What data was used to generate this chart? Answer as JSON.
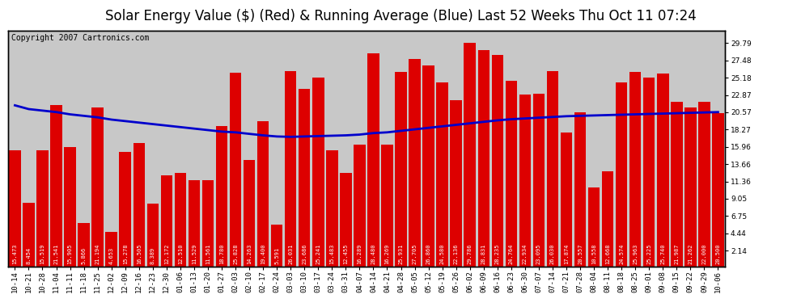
{
  "title": "Solar Energy Value ($) (Red) & Running Average (Blue) Last 52 Weeks Thu Oct 11 07:24",
  "copyright": "Copyright 2007 Cartronics.com",
  "bar_color": "#dd0000",
  "line_color": "#0000cc",
  "bg_color": "#ffffff",
  "plot_bg_color": "#c8c8c8",
  "grid_color": "#ffffff",
  "categories": [
    "10-14",
    "10-21",
    "10-28",
    "11-04",
    "11-11",
    "11-18",
    "11-25",
    "12-02",
    "12-09",
    "12-16",
    "12-23",
    "12-30",
    "01-06",
    "01-13",
    "01-20",
    "01-27",
    "02-03",
    "02-10",
    "02-17",
    "02-24",
    "03-03",
    "03-10",
    "03-17",
    "03-24",
    "03-31",
    "04-07",
    "04-14",
    "04-21",
    "04-28",
    "05-05",
    "05-12",
    "05-19",
    "05-26",
    "06-02",
    "06-09",
    "06-16",
    "06-23",
    "06-30",
    "07-07",
    "07-14",
    "07-21",
    "07-28",
    "08-04",
    "08-11",
    "08-18",
    "08-25",
    "09-01",
    "09-08",
    "09-15",
    "09-22",
    "09-29",
    "10-06"
  ],
  "values": [
    15.473,
    8.454,
    15.519,
    21.541,
    15.905,
    5.866,
    21.194,
    4.653,
    15.278,
    16.505,
    8.389,
    12.172,
    12.51,
    11.529,
    11.561,
    18.78,
    25.828,
    14.263,
    19.4,
    5.591,
    26.031,
    23.686,
    25.241,
    15.483,
    12.455,
    16.289,
    28.48,
    16.269,
    25.931,
    27.705,
    26.86,
    24.58,
    22.136,
    29.786,
    28.831,
    28.235,
    24.764,
    22.934,
    23.095,
    26.03,
    17.874,
    20.557,
    10.558,
    12.668,
    24.574,
    25.963,
    25.225,
    25.74,
    21.987,
    21.262,
    22.0,
    20.5
  ],
  "running_avg": [
    21.5,
    21.0,
    20.8,
    20.6,
    20.3,
    20.1,
    19.9,
    19.6,
    19.4,
    19.2,
    19.0,
    18.8,
    18.6,
    18.4,
    18.2,
    18.0,
    17.9,
    17.7,
    17.5,
    17.35,
    17.3,
    17.35,
    17.4,
    17.45,
    17.5,
    17.6,
    17.8,
    17.9,
    18.1,
    18.3,
    18.5,
    18.7,
    18.9,
    19.1,
    19.3,
    19.5,
    19.65,
    19.75,
    19.85,
    19.95,
    20.05,
    20.1,
    20.15,
    20.2,
    20.25,
    20.3,
    20.35,
    20.4,
    20.45,
    20.5,
    20.55,
    20.6
  ],
  "yticks": [
    2.14,
    4.44,
    6.75,
    9.05,
    11.36,
    13.66,
    15.96,
    18.27,
    20.57,
    22.87,
    25.18,
    27.48,
    29.79
  ],
  "ylim": [
    0,
    31.5
  ],
  "title_fontsize": 12,
  "tick_fontsize": 6.5,
  "label_fontsize": 5.0,
  "copyright_fontsize": 7
}
